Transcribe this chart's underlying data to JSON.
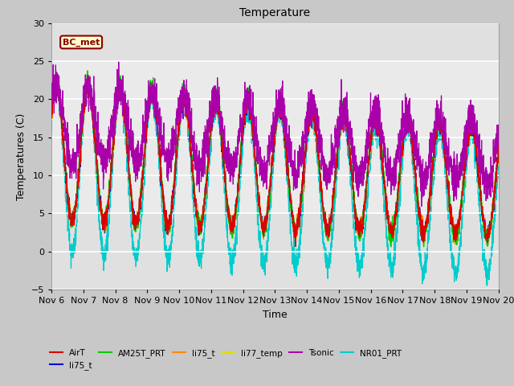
{
  "title": "Temperature",
  "xlabel": "Time",
  "ylabel": "Temperatures (C)",
  "ylim": [
    -5,
    30
  ],
  "xlim": [
    0,
    14
  ],
  "x_tick_labels": [
    "Nov 6",
    "Nov 7",
    "Nov 8",
    "Nov 9",
    "Nov 10",
    "Nov 11",
    "Nov 12",
    "Nov 13",
    "Nov 14",
    "Nov 15",
    "Nov 16",
    "Nov 17",
    "Nov 18",
    "Nov 19",
    "Nov 20"
  ],
  "yticks": [
    -5,
    0,
    5,
    10,
    15,
    20,
    25,
    30
  ],
  "bg_outer_color": "#c8c8c8",
  "plot_bg_color": "#e0e0e0",
  "grid_color": "white",
  "series_colors": {
    "AirT": "#dd0000",
    "li75_t_blue": "#0000dd",
    "AM25T_PRT": "#00cc00",
    "li75_t_orange": "#ff8800",
    "li77_temp": "#dddd00",
    "Tsonic": "#aa00aa",
    "NR01_PRT": "#00cccc"
  },
  "legend_box": {
    "text": "BC_met",
    "facecolor": "#ffffcc",
    "edgecolor": "#8b0000",
    "text_color": "#8b0000"
  },
  "n_points": 3000,
  "days": 14,
  "figsize": [
    6.4,
    4.8
  ],
  "dpi": 100
}
